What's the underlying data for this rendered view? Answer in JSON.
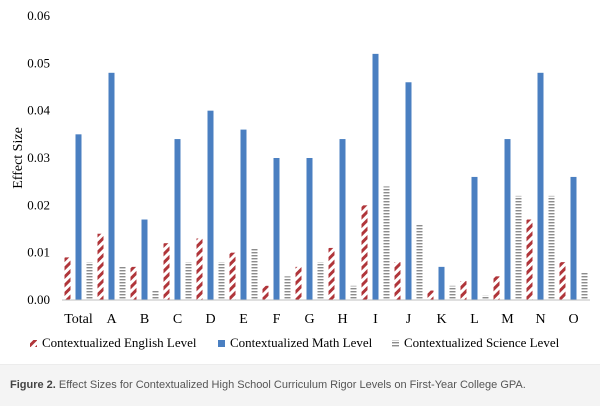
{
  "figure": {
    "caption_label": "Figure 2.",
    "caption_text": "Effect Sizes for Contextualized High School Curriculum Rigor Levels on First-Year College GPA."
  },
  "chart_data": {
    "type": "bar",
    "ylabel": "Effect Size",
    "xlabel": "",
    "ylim": [
      0,
      0.06
    ],
    "yticks": [
      "0.00",
      "0.01",
      "0.02",
      "0.03",
      "0.04",
      "0.05",
      "0.06"
    ],
    "grid": false,
    "legend_position": "bottom",
    "categories": [
      "Total",
      "A",
      "B",
      "C",
      "D",
      "E",
      "F",
      "G",
      "H",
      "I",
      "J",
      "K",
      "L",
      "M",
      "N",
      "O"
    ],
    "series": [
      {
        "name": "Contextualized English Level",
        "pattern": "diagonal-stripes",
        "color": "#b0353a",
        "values": [
          0.009,
          0.014,
          0.007,
          0.012,
          0.013,
          0.01,
          0.003,
          0.007,
          0.011,
          0.02,
          0.008,
          0.002,
          0.004,
          0.005,
          0.017,
          0.008
        ]
      },
      {
        "name": "Contextualized Math Level",
        "pattern": "solid",
        "color": "#4a7fc1",
        "values": [
          0.035,
          0.048,
          0.017,
          0.034,
          0.04,
          0.036,
          0.03,
          0.03,
          0.034,
          0.052,
          0.046,
          0.007,
          0.026,
          0.034,
          0.048,
          0.026
        ]
      },
      {
        "name": "Contextualized Science Level",
        "pattern": "horizontal-stripes",
        "color": "#8c8c8c",
        "values": [
          0.008,
          0.007,
          0.002,
          0.008,
          0.008,
          0.011,
          0.005,
          0.008,
          0.003,
          0.024,
          0.016,
          0.003,
          0.001,
          0.022,
          0.022,
          0.006
        ]
      }
    ]
  }
}
